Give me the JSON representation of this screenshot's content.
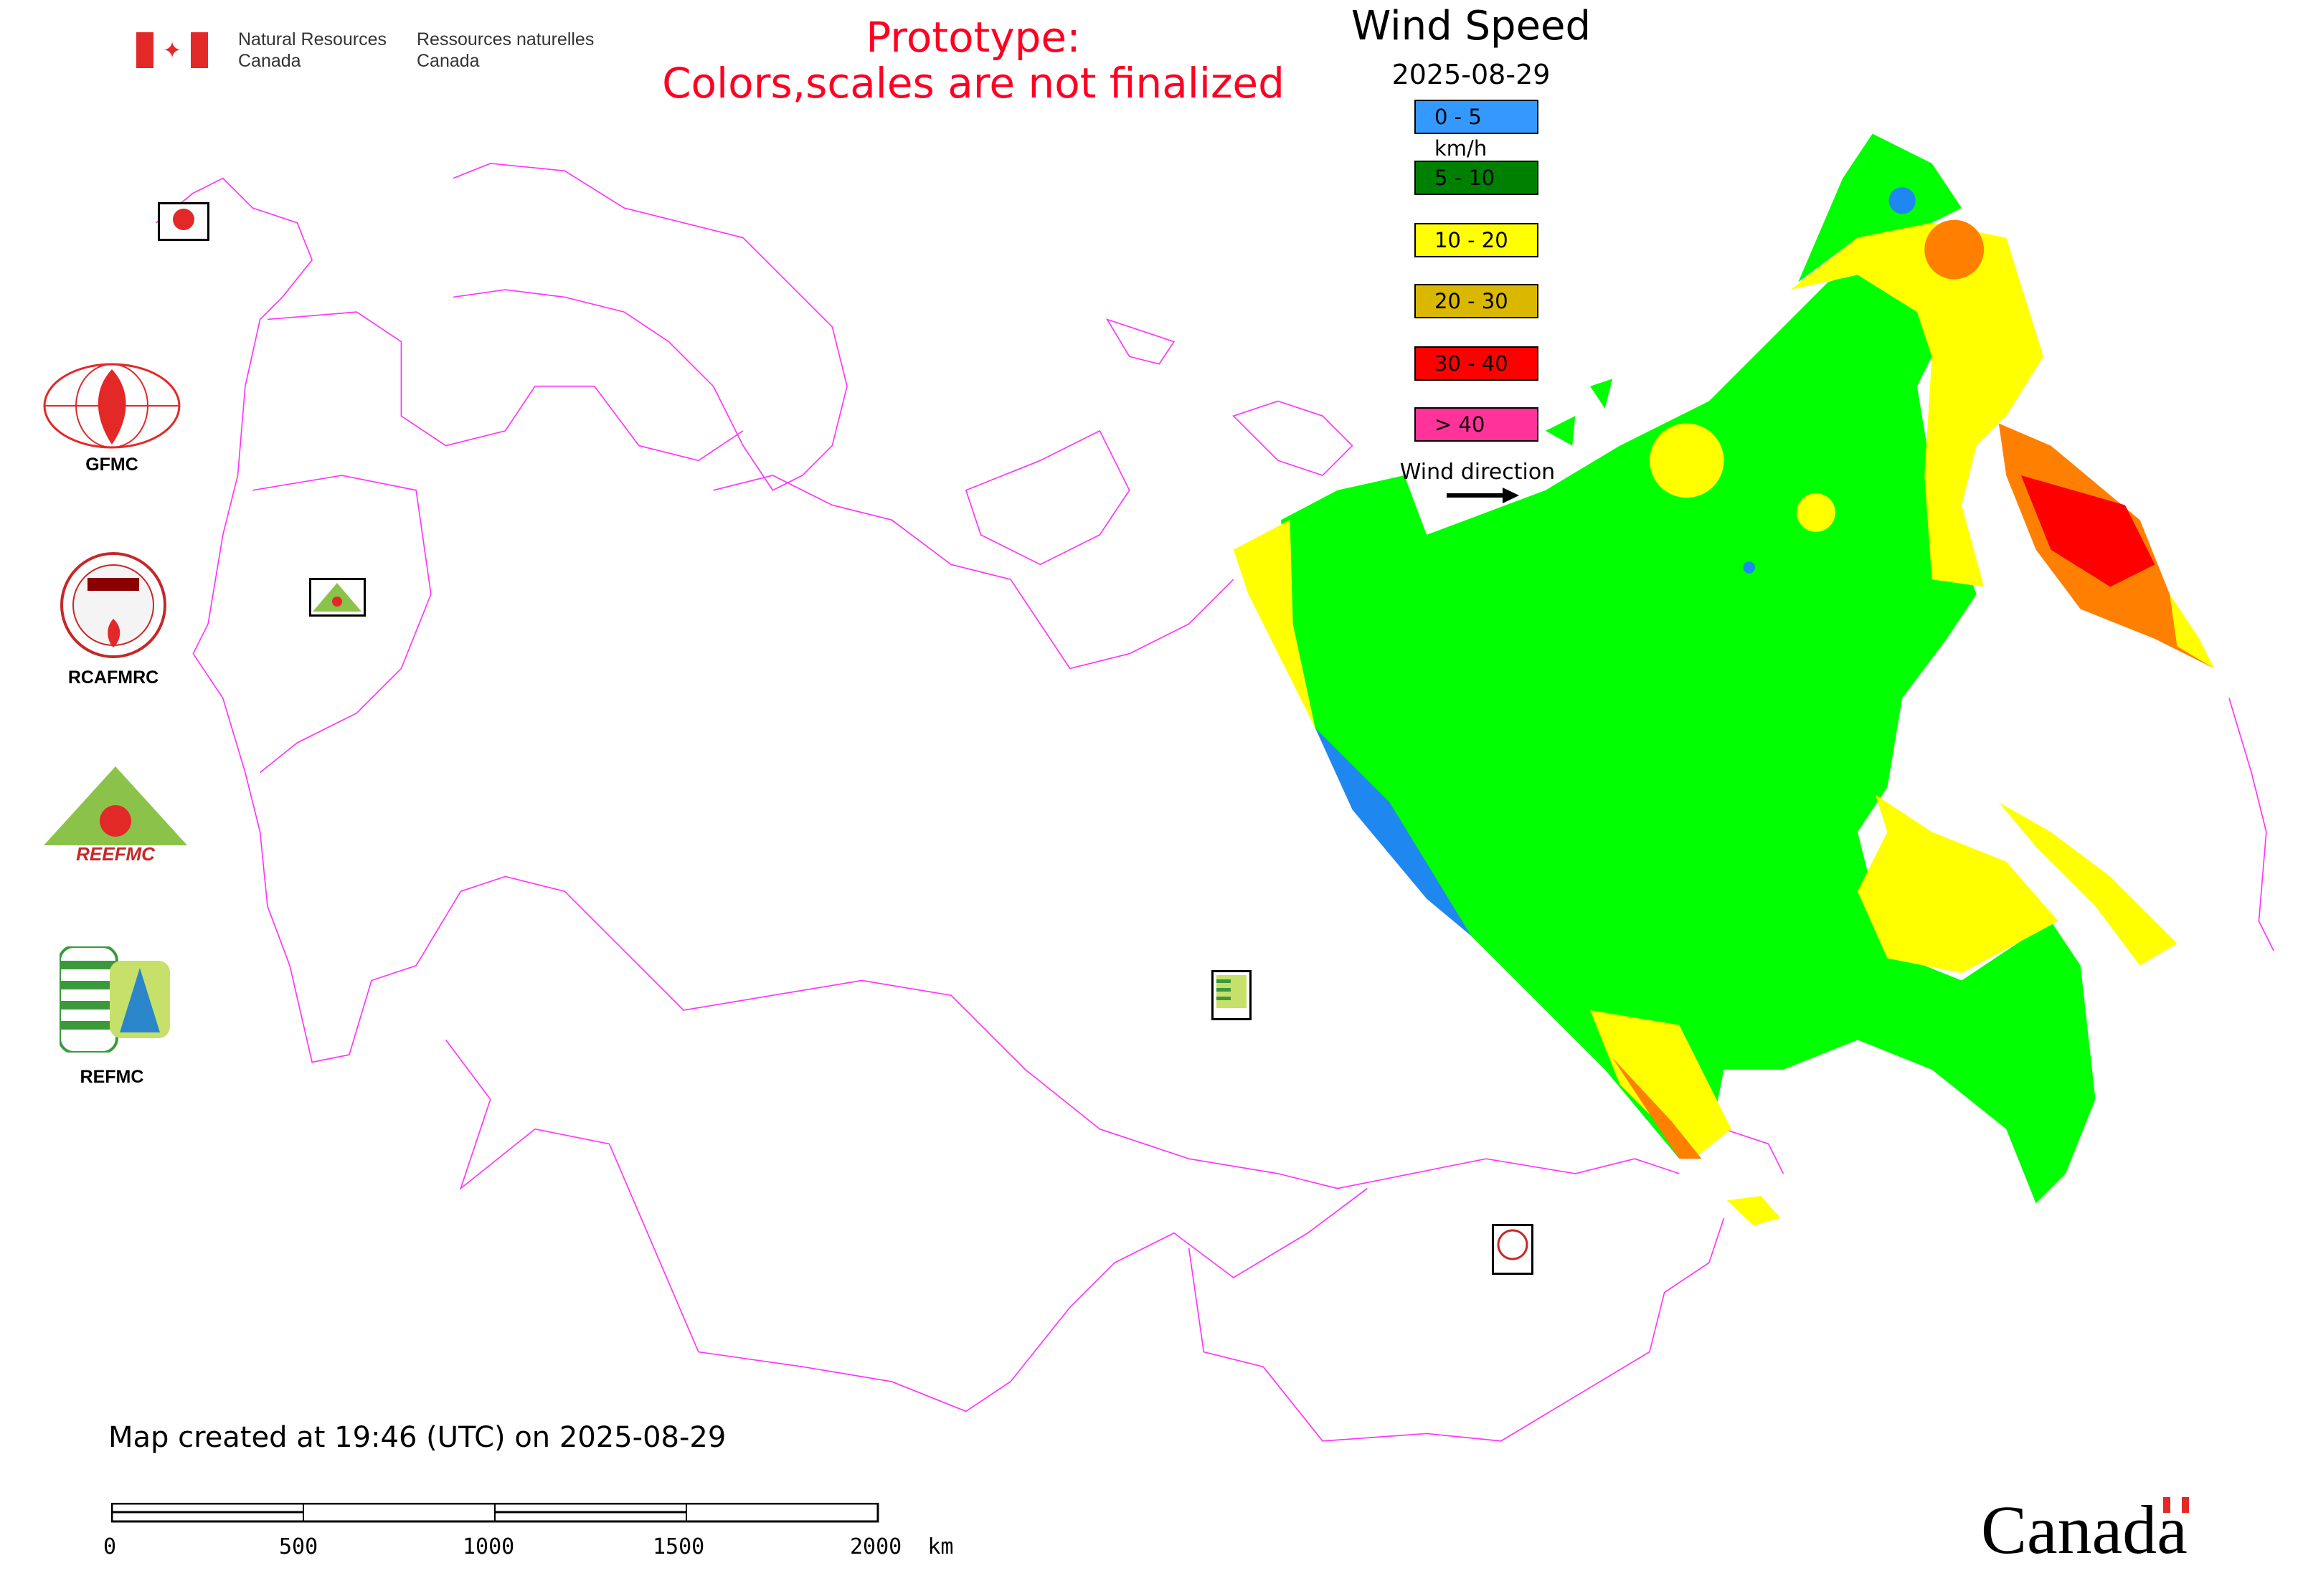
{
  "header": {
    "agency_en": [
      "Natural Resources",
      "Canada"
    ],
    "agency_fr": [
      "Ressources naturelles",
      "Canada"
    ],
    "prototype_line1": "Prototype:",
    "prototype_line2": "Colors,scales are not finalized",
    "prototype_color": "#ff0022"
  },
  "legend": {
    "title": "Wind Speed",
    "date": "2025-08-29",
    "classes": [
      {
        "label": "0 - 5 km/h",
        "color": "#3399ff"
      },
      {
        "label": "5 - 10",
        "color": "#008000"
      },
      {
        "label": "10 - 20",
        "color": "#ffff00"
      },
      {
        "label": "20 - 30",
        "color": "#dbb800"
      },
      {
        "label": "30 - 40",
        "color": "#ff0000"
      },
      {
        "label": "> 40",
        "color": "#ff3399"
      }
    ],
    "wind_direction_label": "Wind direction"
  },
  "logos": {
    "gfmc": "GFMC",
    "rcafmrc": "RCAFMRC",
    "reefmc": "REEFMC",
    "refmc": "REFMC"
  },
  "footer": {
    "created": "Map created at 19:46 (UTC) on 2025-08-29",
    "scale_labels": [
      "0",
      "500",
      "1000",
      "1500",
      "2000  km"
    ],
    "wordmark": "Canada"
  },
  "colors": {
    "border": "#ff33ff",
    "fill_5_10_observed": "#00ff00"
  }
}
